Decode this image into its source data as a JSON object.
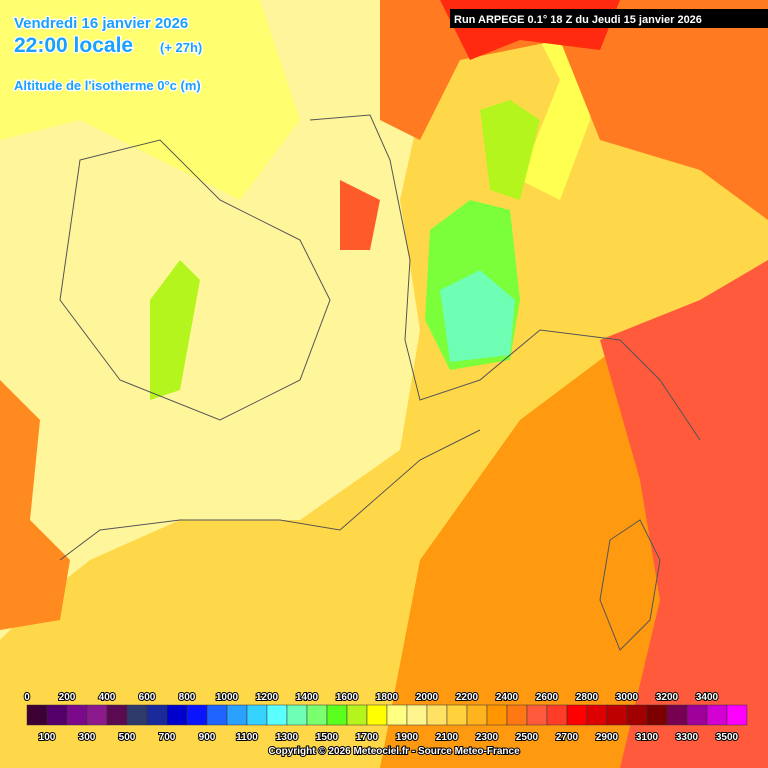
{
  "header": {
    "date": "Vendredi 16 janvier 2026",
    "time": "22:00 locale",
    "lead": "(+ 27h)",
    "parameter": "Altitude de l'isotherme 0°c (m)",
    "run": "Run ARPEGE 0.1° 18 Z du Jeudi 15 janvier 2026"
  },
  "legend": {
    "top_labels": [
      0,
      200,
      400,
      600,
      800,
      1000,
      1200,
      1400,
      1600,
      1800,
      2000,
      2200,
      2400,
      2600,
      2800,
      3000,
      3200,
      3400
    ],
    "bottom_labels": [
      100,
      300,
      500,
      700,
      900,
      1100,
      1300,
      1500,
      1700,
      1900,
      2100,
      2300,
      2500,
      2700,
      2900,
      3100,
      3300,
      3500
    ],
    "colors": [
      "#3c0032",
      "#55006a",
      "#7a0a8a",
      "#8c1a8c",
      "#5a0a50",
      "#2e3a6a",
      "#1a2a9a",
      "#0000cc",
      "#0a14ff",
      "#1e64ff",
      "#2aa0ff",
      "#36d2ff",
      "#5affff",
      "#6effb4",
      "#7aff6e",
      "#5aff1e",
      "#b4f51e",
      "#ffff00",
      "#ffff82",
      "#fff58c",
      "#ffe164",
      "#ffd23c",
      "#ffb41e",
      "#ff9600",
      "#ff7814",
      "#ff5a3c",
      "#ff3c28",
      "#ff0000",
      "#dc0000",
      "#be0000",
      "#a00000",
      "#7d0000",
      "#780050",
      "#a0009a",
      "#d200d2",
      "#ff00ff"
    ]
  },
  "footer": {
    "copyright": "Copyright © 2026 Meteociel.fr - Source Meteo-France"
  }
}
